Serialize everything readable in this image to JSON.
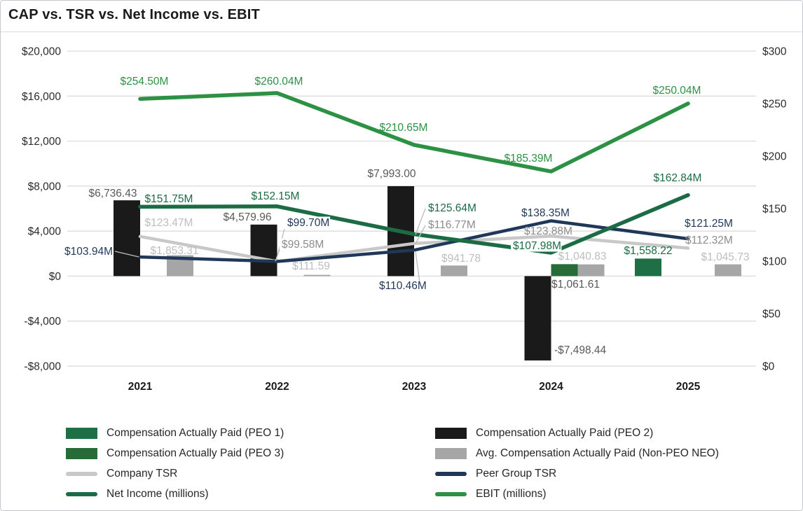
{
  "title": "CAP vs. TSR vs. Net Income vs. EBIT",
  "chart_data": {
    "type": "combo-bar-line",
    "title": "CAP vs. TSR vs. Net Income vs. EBIT",
    "categories": [
      "2021",
      "2022",
      "2023",
      "2024",
      "2025"
    ],
    "left_axis": {
      "ticks": [
        "$20,000",
        "$16,000",
        "$12,000",
        "$8,000",
        "$4,000",
        "$0",
        "-$4,000",
        "-$8,000"
      ],
      "min": -8000,
      "max": 20000,
      "grid": true
    },
    "right_axis": {
      "ticks": [
        "$300",
        "$250",
        "$200",
        "$150",
        "$100",
        "$50",
        "$0"
      ],
      "min": 0,
      "max": 300
    },
    "bar_series": [
      {
        "name": "Compensation Actually Paid (PEO 1)",
        "axis": "left",
        "color": "#1E6F45",
        "label_color": "#1B6B44",
        "values": [
          null,
          null,
          null,
          null,
          1558.22
        ],
        "labels": [
          null,
          null,
          null,
          null,
          "$1,558.22"
        ]
      },
      {
        "name": "Compensation Actually Paid (PEO 2)",
        "axis": "left",
        "color": "#1A1A1A",
        "label_color": "#595959",
        "values": [
          6736.43,
          4579.96,
          7993.0,
          -7498.44,
          null
        ],
        "labels": [
          "$6,736.43",
          "$4,579.96",
          "$7,993.00",
          "-$7,498.44",
          null
        ]
      },
      {
        "name": "Compensation Actually Paid (PEO 3)",
        "axis": "left",
        "color": "#276B38",
        "label_color": "#595959",
        "values": [
          null,
          null,
          null,
          1061.61,
          null
        ],
        "labels": [
          null,
          null,
          null,
          "$1,061.61",
          null
        ]
      },
      {
        "name": "Avg. Compensation Actually Paid (Non-PEO NEO)",
        "axis": "left",
        "color": "#A6A6A6",
        "label_color": "#BDBDBD",
        "values": [
          1853.31,
          111.59,
          941.78,
          1040.83,
          1045.73
        ],
        "labels": [
          "$1,853.31",
          "$111.59",
          "$941.78",
          "$1,040.83",
          "$1,045.73"
        ]
      }
    ],
    "line_series": [
      {
        "name": "Company TSR",
        "axis": "right",
        "color": "#C8C8C8",
        "label_color": "#8C8C8C",
        "values": [
          123.47,
          99.58,
          116.77,
          123.88,
          112.32
        ],
        "labels": [
          "$123.47M",
          "$99.58M",
          "$116.77M",
          "$123.88M",
          "$112.32M"
        ]
      },
      {
        "name": "Peer Group TSR",
        "axis": "right",
        "color": "#1F385A",
        "label_color": "#1F385A",
        "values": [
          103.94,
          99.7,
          110.46,
          138.35,
          121.25
        ],
        "labels": [
          "$103.94M",
          "$99.70M",
          "$110.46M",
          "$138.35M",
          "$121.25M"
        ]
      },
      {
        "name": "Net Income (millions)",
        "axis": "right",
        "color": "#1B6B44",
        "label_color": "#1B6B44",
        "values": [
          151.75,
          152.15,
          125.64,
          107.98,
          162.84
        ],
        "labels": [
          "$151.75M",
          "$152.15M",
          "$125.64M",
          "$107.98M",
          "$162.84M"
        ]
      },
      {
        "name": "EBIT (millions)",
        "axis": "right",
        "color": "#2D9144",
        "label_color": "#2D9144",
        "values": [
          254.5,
          260.04,
          210.65,
          185.39,
          250.04
        ],
        "labels": [
          "$254.50M",
          "$260.04M",
          "$210.65M",
          "$185.39M",
          "$250.04M"
        ]
      }
    ],
    "legend": {
      "position": "bottom",
      "left": [
        {
          "label": "Compensation Actually Paid (PEO 1)",
          "swatch": "bar",
          "color": "#1E6F45"
        },
        {
          "label": "Compensation Actually Paid (PEO 3)",
          "swatch": "bar",
          "color": "#276B38"
        },
        {
          "label": "Company TSR",
          "swatch": "line",
          "color": "#C8C8C8"
        },
        {
          "label": "Net Income (millions)",
          "swatch": "line",
          "color": "#1B6B44"
        }
      ],
      "right": [
        {
          "label": "Compensation Actually Paid (PEO 2)",
          "swatch": "bar",
          "color": "#1A1A1A"
        },
        {
          "label": "Avg. Compensation Actually Paid (Non-PEO NEO)",
          "swatch": "bar",
          "color": "#A6A6A6"
        },
        {
          "label": "Peer Group TSR",
          "swatch": "line",
          "color": "#1F385A"
        },
        {
          "label": "EBIT (millions)",
          "swatch": "line",
          "color": "#2D9144"
        }
      ]
    }
  }
}
